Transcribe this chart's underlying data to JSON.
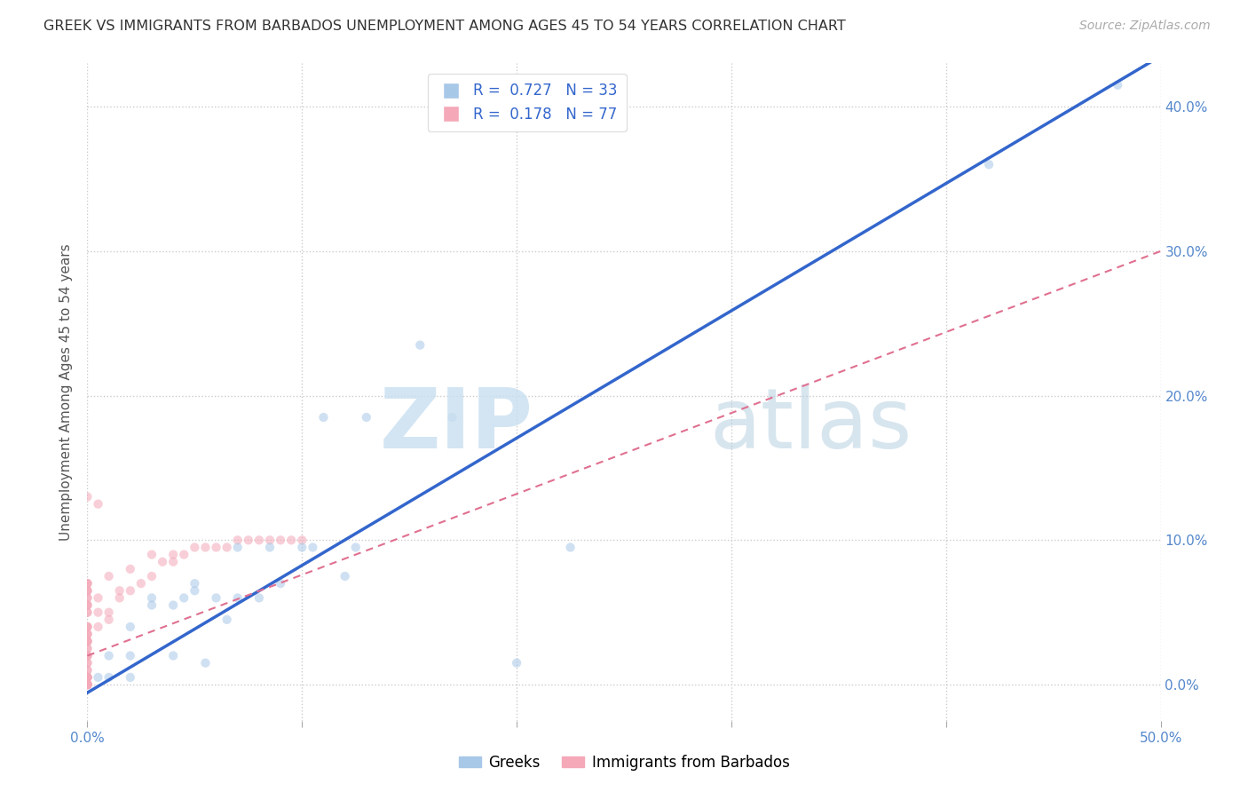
{
  "title": "GREEK VS IMMIGRANTS FROM BARBADOS UNEMPLOYMENT AMONG AGES 45 TO 54 YEARS CORRELATION CHART",
  "source": "Source: ZipAtlas.com",
  "ylabel": "Unemployment Among Ages 45 to 54 years",
  "xlim": [
    0.0,
    0.5
  ],
  "ylim": [
    -0.025,
    0.43
  ],
  "xticks": [
    0.0,
    0.1,
    0.2,
    0.3,
    0.4,
    0.5
  ],
  "xticklabels": [
    "0.0%",
    "",
    "",
    "",
    "",
    "50.0%"
  ],
  "yticks": [
    0.0,
    0.1,
    0.2,
    0.3,
    0.4
  ],
  "yticklabels": [
    "0.0%",
    "10.0%",
    "20.0%",
    "30.0%",
    "40.0%"
  ],
  "legend1_R": "0.727",
  "legend1_N": "33",
  "legend2_R": "0.178",
  "legend2_N": "77",
  "legend1_label": "Greeks",
  "legend2_label": "Immigrants from Barbados",
  "blue_color": "#a8c8e8",
  "pink_color": "#f4a8b8",
  "blue_line_color": "#3366cc",
  "pink_line_color": "#e07090",
  "axis_tick_color": "#5588cc",
  "blue_x": [
    0.005,
    0.01,
    0.01,
    0.02,
    0.02,
    0.02,
    0.03,
    0.03,
    0.04,
    0.04,
    0.045,
    0.05,
    0.05,
    0.055,
    0.06,
    0.065,
    0.07,
    0.07,
    0.08,
    0.085,
    0.09,
    0.1,
    0.105,
    0.11,
    0.12,
    0.125,
    0.13,
    0.155,
    0.17,
    0.2,
    0.225,
    0.42,
    0.48
  ],
  "blue_y": [
    0.005,
    0.005,
    0.02,
    0.005,
    0.02,
    0.04,
    0.055,
    0.06,
    0.02,
    0.055,
    0.06,
    0.07,
    0.065,
    0.015,
    0.06,
    0.045,
    0.06,
    0.095,
    0.06,
    0.095,
    0.07,
    0.095,
    0.095,
    0.185,
    0.075,
    0.095,
    0.185,
    0.235,
    0.185,
    0.015,
    0.095,
    0.36,
    0.415
  ],
  "pink_x": [
    0.0,
    0.0,
    0.0,
    0.0,
    0.0,
    0.0,
    0.0,
    0.0,
    0.0,
    0.0,
    0.0,
    0.0,
    0.0,
    0.0,
    0.0,
    0.0,
    0.0,
    0.0,
    0.0,
    0.0,
    0.0,
    0.0,
    0.0,
    0.0,
    0.0,
    0.0,
    0.0,
    0.0,
    0.0,
    0.0,
    0.0,
    0.0,
    0.0,
    0.0,
    0.0,
    0.0,
    0.0,
    0.0,
    0.0,
    0.0,
    0.0,
    0.0,
    0.0,
    0.0,
    0.0,
    0.0,
    0.0,
    0.0,
    0.005,
    0.005,
    0.005,
    0.005,
    0.01,
    0.01,
    0.01,
    0.015,
    0.015,
    0.02,
    0.02,
    0.025,
    0.03,
    0.03,
    0.035,
    0.04,
    0.04,
    0.045,
    0.05,
    0.055,
    0.06,
    0.065,
    0.07,
    0.075,
    0.08,
    0.085,
    0.09,
    0.095,
    0.1
  ],
  "pink_y": [
    0.0,
    0.0,
    0.0,
    0.0,
    0.0,
    0.0,
    0.0,
    0.0,
    0.0,
    0.005,
    0.005,
    0.005,
    0.005,
    0.005,
    0.005,
    0.01,
    0.01,
    0.015,
    0.015,
    0.02,
    0.02,
    0.02,
    0.025,
    0.025,
    0.03,
    0.03,
    0.03,
    0.03,
    0.035,
    0.035,
    0.035,
    0.04,
    0.04,
    0.04,
    0.05,
    0.05,
    0.055,
    0.055,
    0.055,
    0.06,
    0.06,
    0.065,
    0.065,
    0.065,
    0.07,
    0.07,
    0.07,
    0.13,
    0.04,
    0.05,
    0.06,
    0.125,
    0.045,
    0.05,
    0.075,
    0.06,
    0.065,
    0.065,
    0.08,
    0.07,
    0.075,
    0.09,
    0.085,
    0.085,
    0.09,
    0.09,
    0.095,
    0.095,
    0.095,
    0.095,
    0.1,
    0.1,
    0.1,
    0.1,
    0.1,
    0.1,
    0.1
  ],
  "blue_line_x": [
    -0.005,
    0.5
  ],
  "blue_line_y": [
    -0.01,
    0.435
  ],
  "pink_line_x": [
    0.0,
    0.5
  ],
  "pink_line_y": [
    0.02,
    0.3
  ],
  "grid_color": "#cccccc",
  "bg_color": "#ffffff",
  "marker_size": 55,
  "marker_alpha": 0.55,
  "right_ytick_color": "#5588cc"
}
